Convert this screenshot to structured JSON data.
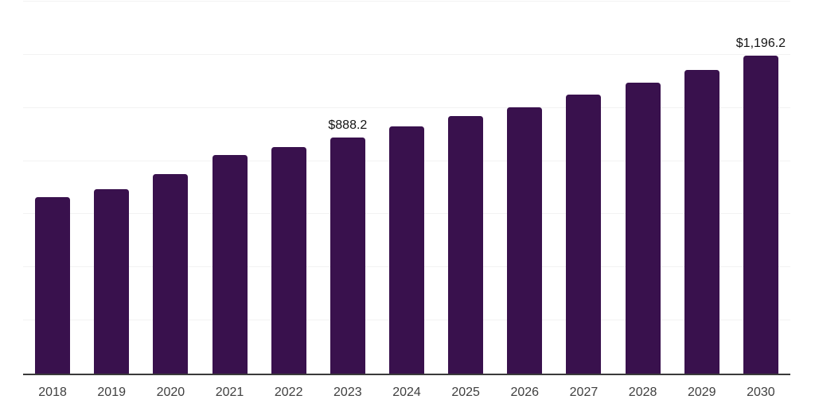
{
  "chart_data": {
    "type": "bar",
    "title": "",
    "xlabel": "",
    "ylabel": "",
    "categories": [
      "2018",
      "2019",
      "2020",
      "2021",
      "2022",
      "2023",
      "2024",
      "2025",
      "2026",
      "2027",
      "2028",
      "2029",
      "2030"
    ],
    "values": [
      663,
      693,
      751,
      822,
      852,
      888.2,
      929,
      968,
      1002,
      1050,
      1096,
      1144,
      1196.2
    ],
    "data_labels": [
      {
        "index": 5,
        "text": "$888.2"
      },
      {
        "index": 12,
        "text": "$1,196.2"
      }
    ],
    "ylim": [
      0,
      1400
    ],
    "grid_interval": 200,
    "grid": true,
    "legend": false,
    "y_axis_labels_visible": false,
    "colors": {
      "bar": "#39114d",
      "gridline": "#f3f3f3",
      "axis_line": "#3a3a3a",
      "x_label": "#3f3f3f",
      "data_label": "#141414",
      "background": "#ffffff"
    }
  }
}
